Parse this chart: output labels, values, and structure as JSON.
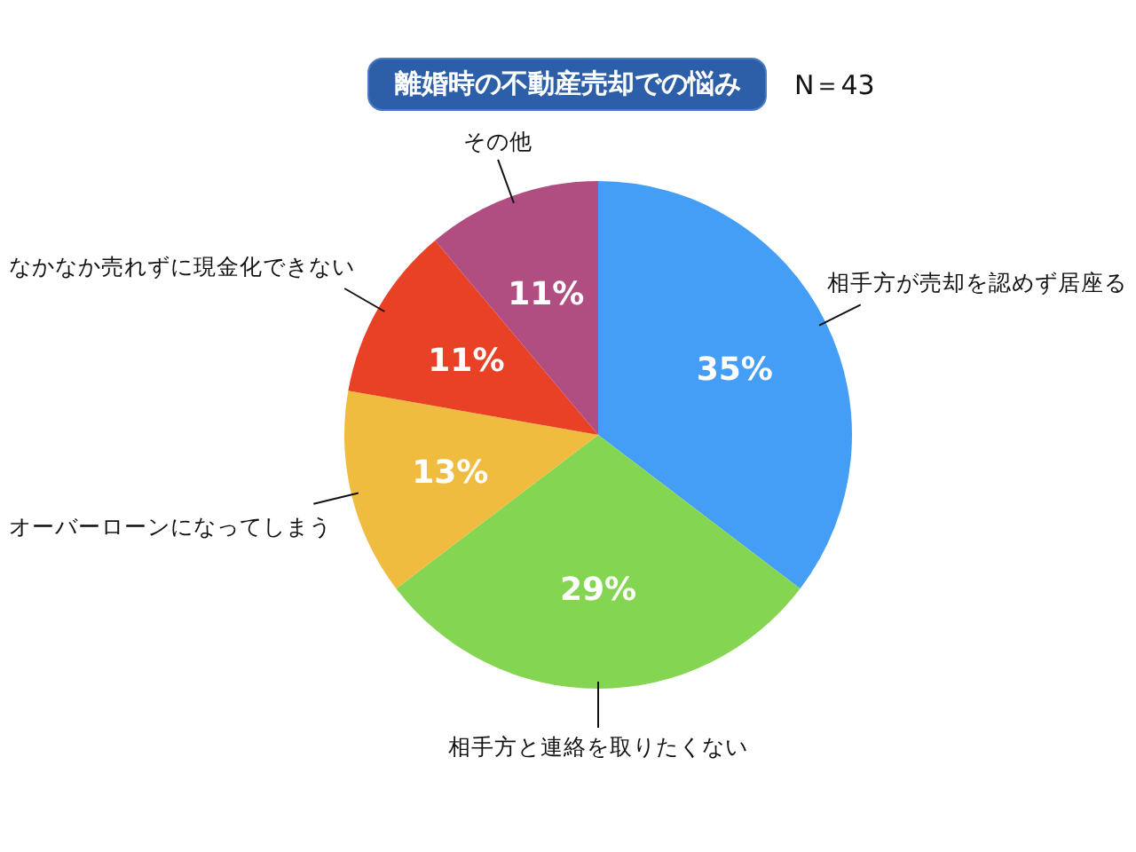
{
  "chart_data": {
    "type": "pie",
    "title": "離婚時の不動産売却での悩み",
    "annotations": [
      "N＝43"
    ],
    "categories": [
      "相手方が売却を認めず居座る",
      "相手方と連絡を取りたくない",
      "オーバーローンになってしまう",
      "なかなか売れずに現金化できない",
      "その他"
    ],
    "values": [
      35,
      29,
      13,
      11,
      11
    ],
    "colors": [
      "#459ef6",
      "#84d551",
      "#efbc40",
      "#e84126",
      "#b04e82"
    ],
    "value_labels": [
      "35%",
      "29%",
      "13%",
      "11%",
      "11%"
    ]
  }
}
